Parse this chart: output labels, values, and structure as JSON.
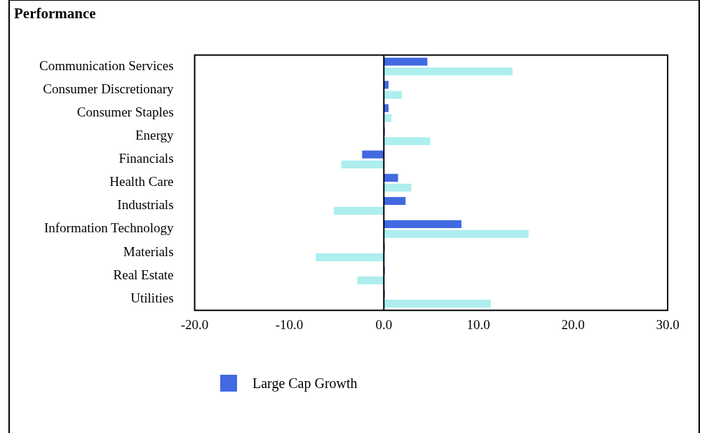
{
  "chart_data": {
    "type": "bar",
    "orientation": "horizontal",
    "title": "Performance",
    "categories": [
      "Communication Services",
      "Consumer Discretionary",
      "Consumer Staples",
      "Energy",
      "Financials",
      "Health Care",
      "Industrials",
      "Information Technology",
      "Materials",
      "Real Estate",
      "Utilities"
    ],
    "series": [
      {
        "name": "Large Cap Growth",
        "color": "#4169e1",
        "values": [
          4.6,
          0.5,
          0.5,
          0.1,
          -2.3,
          1.5,
          2.3,
          8.2,
          0.1,
          0.1,
          0.1
        ]
      },
      {
        "color": "#aeeeee",
        "values": [
          13.6,
          1.9,
          0.8,
          4.9,
          -4.5,
          2.9,
          -5.3,
          15.3,
          -7.2,
          -2.8,
          11.3
        ]
      }
    ],
    "xlim": [
      -20,
      30
    ],
    "xticks": [
      {
        "value": -20,
        "label": "-20.0"
      },
      {
        "value": -10,
        "label": "-10.0"
      },
      {
        "value": 0,
        "label": "0.0"
      },
      {
        "value": 10,
        "label": "10.0"
      },
      {
        "value": 20,
        "label": "20.0"
      },
      {
        "value": 30,
        "label": "30.0"
      }
    ],
    "ref_lines": [
      {
        "axis": "x",
        "value": 0,
        "color": "#000000"
      }
    ],
    "grid": false,
    "legend": "bottom"
  }
}
